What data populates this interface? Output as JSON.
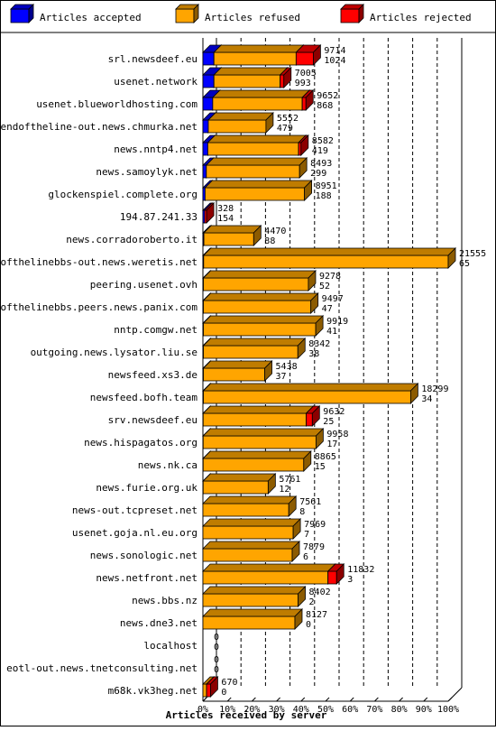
{
  "chart_data": {
    "type": "bar",
    "stacked": true,
    "horizontal": true,
    "xlabel": "Articles received by server",
    "xlim": [
      0,
      100
    ],
    "x_tick_labels": [
      "0%",
      "10%",
      "20%",
      "30%",
      "40%",
      "50%",
      "60%",
      "70%",
      "80%",
      "90%",
      "100%"
    ],
    "legend": [
      {
        "name": "Articles accepted",
        "color": "#0000ff"
      },
      {
        "name": "Articles refused",
        "color": "#ffa500"
      },
      {
        "name": "Articles rejected",
        "color": "#ff0000"
      }
    ],
    "servers": [
      {
        "name": "srl.newsdeef.eu",
        "total": 9714,
        "accepted_total": 1024,
        "accepted": 4.5,
        "refused": 33.5,
        "rejected": 7
      },
      {
        "name": "usenet.network",
        "total": 7005,
        "accepted_total": 993,
        "accepted": 4.5,
        "refused": 27,
        "rejected": 1.5
      },
      {
        "name": "usenet.blueworldhosting.com",
        "total": 9652,
        "accepted_total": 868,
        "accepted": 4,
        "refused": 36.5,
        "rejected": 1.5
      },
      {
        "name": "endoftheline-out.news.chmurka.net",
        "total": 5552,
        "accepted_total": 479,
        "accepted": 2.2,
        "refused": 23.5,
        "rejected": 0
      },
      {
        "name": "news.nntp4.net",
        "total": 8582,
        "accepted_total": 419,
        "accepted": 2,
        "refused": 37,
        "rejected": 1
      },
      {
        "name": "news.samoylyk.net",
        "total": 8493,
        "accepted_total": 299,
        "accepted": 1.4,
        "refused": 38,
        "rejected": 0
      },
      {
        "name": "glockenspiel.complete.org",
        "total": 8951,
        "accepted_total": 188,
        "accepted": 0.9,
        "refused": 40.5,
        "rejected": 0
      },
      {
        "name": "194.87.241.33",
        "total": 328,
        "accepted_total": 154,
        "accepted": 0.7,
        "refused": 0,
        "rejected": 0.8
      },
      {
        "name": "news.corradoroberto.it",
        "total": 4470,
        "accepted_total": 88,
        "accepted": 0.4,
        "refused": 20.3,
        "rejected": 0
      },
      {
        "name": "endofthelinebbs-out.news.weretis.net",
        "total": 21555,
        "accepted_total": 65,
        "accepted": 0.3,
        "refused": 99.7,
        "rejected": 0
      },
      {
        "name": "peering.usenet.ovh",
        "total": 9278,
        "accepted_total": 52,
        "accepted": 0.2,
        "refused": 42.8,
        "rejected": 0
      },
      {
        "name": "endofthelinebbs.peers.news.panix.com",
        "total": 9497,
        "accepted_total": 47,
        "accepted": 0.2,
        "refused": 43.8,
        "rejected": 0
      },
      {
        "name": "nntp.comgw.net",
        "total": 9919,
        "accepted_total": 41,
        "accepted": 0.2,
        "refused": 45.8,
        "rejected": 0
      },
      {
        "name": "outgoing.news.lysator.liu.se",
        "total": 8342,
        "accepted_total": 38,
        "accepted": 0.2,
        "refused": 38.5,
        "rejected": 0
      },
      {
        "name": "newsfeed.xs3.de",
        "total": 5438,
        "accepted_total": 37,
        "accepted": 0.2,
        "refused": 25,
        "rejected": 0
      },
      {
        "name": "newsfeed.bofh.team",
        "total": 18299,
        "accepted_total": 34,
        "accepted": 0.2,
        "refused": 84.5,
        "rejected": 0
      },
      {
        "name": "srv.newsdeef.eu",
        "total": 9632,
        "accepted_total": 25,
        "accepted": 0.1,
        "refused": 42,
        "rejected": 2.5
      },
      {
        "name": "news.hispagatos.org",
        "total": 9958,
        "accepted_total": 17,
        "accepted": 0.1,
        "refused": 46,
        "rejected": 0
      },
      {
        "name": "news.nk.ca",
        "total": 8865,
        "accepted_total": 15,
        "accepted": 0.1,
        "refused": 41,
        "rejected": 0
      },
      {
        "name": "news.furie.org.uk",
        "total": 5761,
        "accepted_total": 12,
        "accepted": 0.1,
        "refused": 26.5,
        "rejected": 0
      },
      {
        "name": "news-out.tcpreset.net",
        "total": 7561,
        "accepted_total": 8,
        "accepted": 0,
        "refused": 35,
        "rejected": 0
      },
      {
        "name": "usenet.goja.nl.eu.org",
        "total": 7969,
        "accepted_total": 7,
        "accepted": 0,
        "refused": 36.8,
        "rejected": 0
      },
      {
        "name": "news.sonologic.net",
        "total": 7879,
        "accepted_total": 6,
        "accepted": 0,
        "refused": 36.4,
        "rejected": 0
      },
      {
        "name": "news.netfront.net",
        "total": 11832,
        "accepted_total": 3,
        "accepted": 0,
        "refused": 51,
        "rejected": 3.5
      },
      {
        "name": "news.bbs.nz",
        "total": 8402,
        "accepted_total": 2,
        "accepted": 0,
        "refused": 38.8,
        "rejected": 0
      },
      {
        "name": "news.dne3.net",
        "total": 8127,
        "accepted_total": 0,
        "accepted": 0,
        "refused": 37.5,
        "rejected": 0
      },
      {
        "name": "localhost",
        "total": 0,
        "accepted_total": 0,
        "accepted": 0,
        "refused": 0,
        "rejected": 0
      },
      {
        "name": "eotl-out.news.tnetconsulting.net",
        "total": 0,
        "accepted_total": 0,
        "accepted": 0,
        "refused": 0,
        "rejected": 0
      },
      {
        "name": "m68k.vk3heg.net",
        "total": 670,
        "accepted_total": 0,
        "accepted": 0,
        "refused": 1.5,
        "rejected": 1.6
      }
    ]
  }
}
